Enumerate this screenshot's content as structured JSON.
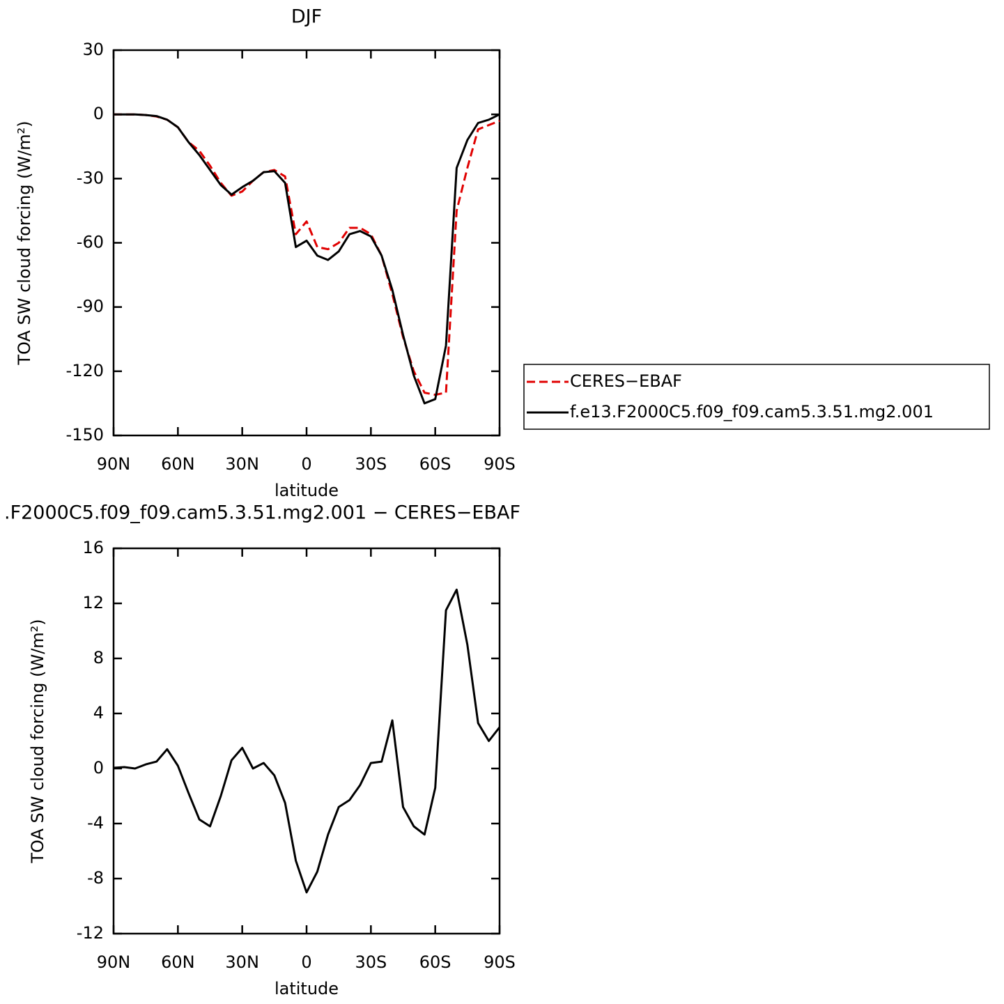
{
  "chart_data": [
    {
      "type": "line",
      "title": "DJF",
      "xlabel": "latitude",
      "ylabel": "TOA SW cloud forcing (W/m²)",
      "x": [
        90,
        85,
        80,
        75,
        70,
        65,
        60,
        55,
        50,
        45,
        40,
        35,
        30,
        25,
        20,
        15,
        10,
        5,
        0,
        -5,
        -10,
        -15,
        -20,
        -25,
        -30,
        -35,
        -40,
        -45,
        -50,
        -55,
        -60,
        -65,
        -70,
        -75,
        -80,
        -85,
        -90
      ],
      "series": [
        {
          "name": "CERES−EBAF",
          "color": "#e00000",
          "dash": true,
          "values": [
            0,
            0,
            0,
            -0.3,
            -1,
            -2.5,
            -6,
            -13,
            -17,
            -24,
            -32,
            -38,
            -36,
            -31,
            -27,
            -26,
            -29,
            -56,
            -50,
            -62,
            -63,
            -60,
            -53,
            -53,
            -56,
            -66,
            -84,
            -104,
            -120,
            -130,
            -131,
            -130,
            -45,
            -25,
            -7,
            -5,
            -3
          ]
        },
        {
          "name": "f.e13.F2000C5.f09_f09.cam5.3.51.mg2.001",
          "color": "#000000",
          "dash": false,
          "values": [
            0,
            0,
            0,
            -0.3,
            -0.8,
            -2.5,
            -6,
            -13,
            -19,
            -26,
            -33,
            -37.5,
            -34,
            -31,
            -27,
            -26.5,
            -32,
            -62,
            -59,
            -66,
            -68,
            -64,
            -56,
            -54.5,
            -57,
            -66,
            -82,
            -103,
            -122,
            -135,
            -133,
            -108,
            -25,
            -12,
            -4,
            -2.5,
            0
          ]
        }
      ],
      "xlim": [
        90,
        -90
      ],
      "xticks": [
        {
          "value": 90,
          "label": "90N"
        },
        {
          "value": 60,
          "label": "60N"
        },
        {
          "value": 30,
          "label": "30N"
        },
        0,
        {
          "value": -30,
          "label": "30S"
        },
        {
          "value": -60,
          "label": "60S"
        },
        {
          "value": -90,
          "label": "90S"
        }
      ],
      "ylim": [
        -150,
        30
      ],
      "yticks": [
        -150,
        -120,
        -90,
        -60,
        -30,
        0,
        30
      ],
      "legend": "right"
    },
    {
      "type": "line",
      "title": ".F2000C5.f09_f09.cam5.3.51.mg2.001 − CERES−EBAF",
      "xlabel": "latitude",
      "ylabel": "TOA SW cloud forcing (W/m²)",
      "x": [
        90,
        85,
        80,
        75,
        70,
        65,
        60,
        55,
        50,
        45,
        40,
        35,
        30,
        25,
        20,
        15,
        10,
        5,
        0,
        -5,
        -10,
        -15,
        -20,
        -25,
        -30,
        -35,
        -40,
        -45,
        -50,
        -55,
        -60,
        -65,
        -70,
        -75,
        -80,
        -85,
        -90
      ],
      "series": [
        {
          "color": "#000000",
          "dash": false,
          "values": [
            0.05,
            0.1,
            0,
            0.3,
            0.5,
            1.4,
            0.2,
            -1.8,
            -3.7,
            -4.2,
            -2,
            0.6,
            1.5,
            0,
            0.4,
            -0.5,
            -2.5,
            -6.7,
            -9,
            -7.5,
            -4.8,
            -2.8,
            -2.3,
            -1.2,
            0.4,
            0.5,
            3.5,
            -2.8,
            -4.2,
            -4.8,
            -1.4,
            11.5,
            13,
            9,
            3.3,
            2,
            3
          ]
        }
      ],
      "xlim": [
        90,
        -90
      ],
      "xticks": [
        {
          "value": 90,
          "label": "90N"
        },
        {
          "value": 60,
          "label": "60N"
        },
        {
          "value": 30,
          "label": "30N"
        },
        0,
        {
          "value": -30,
          "label": "30S"
        },
        {
          "value": -60,
          "label": "60S"
        },
        {
          "value": -90,
          "label": "90S"
        }
      ],
      "ylim": [
        -12,
        16
      ],
      "yticks": [
        -12,
        -8,
        -4,
        0,
        4,
        8,
        12,
        16
      ]
    }
  ]
}
